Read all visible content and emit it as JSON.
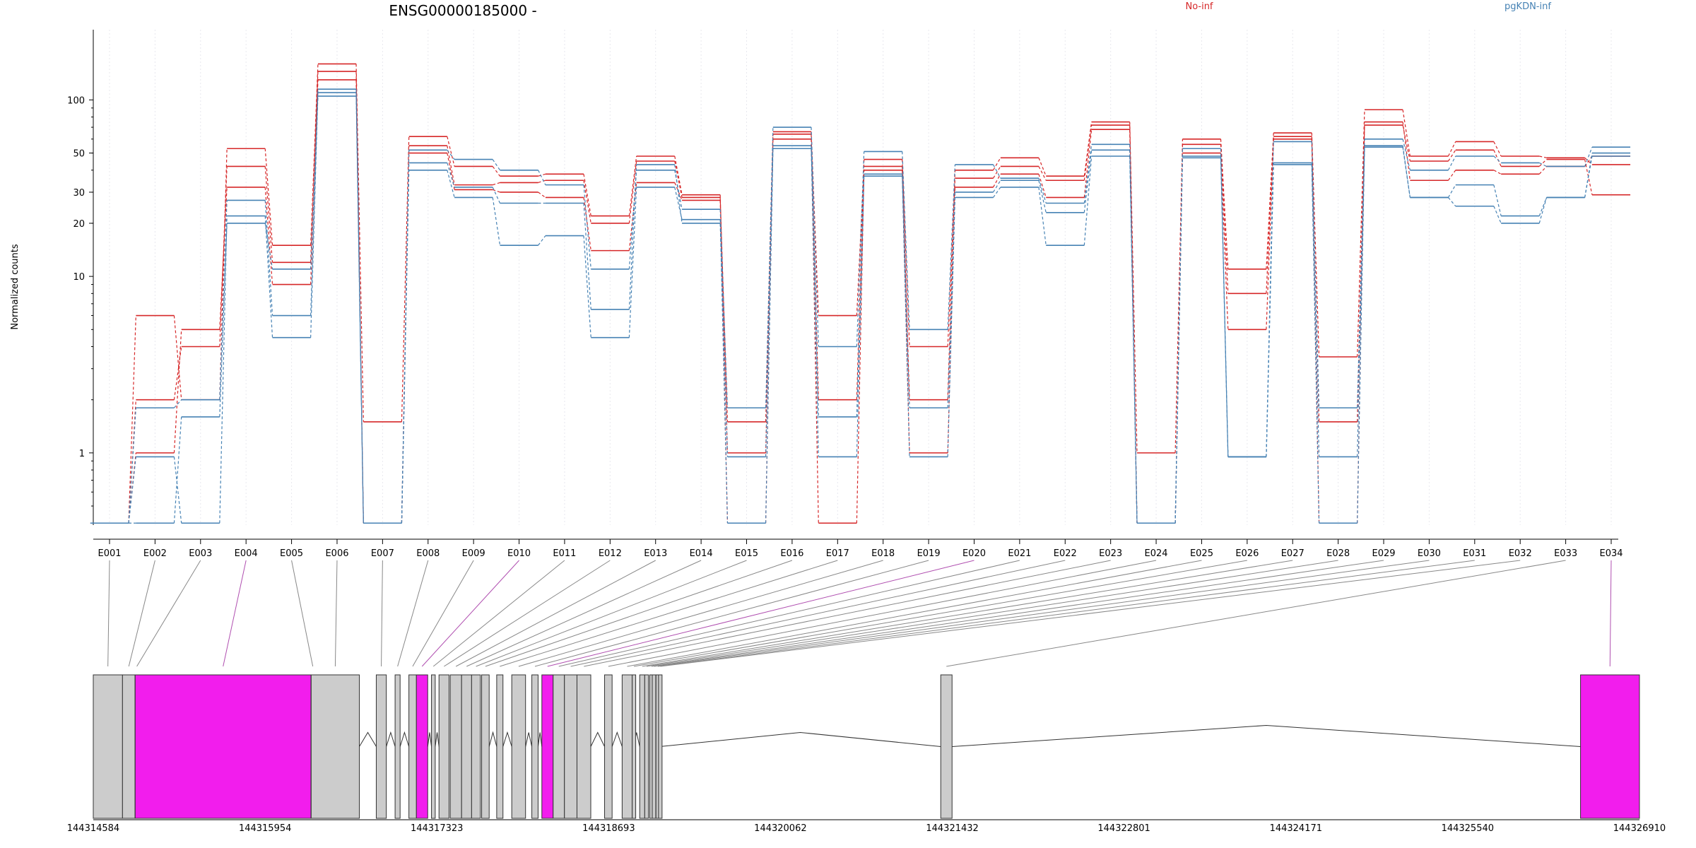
{
  "chart_data": {
    "type": "line",
    "title": "ENSG00000185000 -",
    "ylabel": "Normalized counts",
    "yscale": "log",
    "ylim": [
      0.39,
      250
    ],
    "y_ticks": [
      {
        "value": 1,
        "label": "1"
      },
      {
        "value": 10,
        "label": "10"
      },
      {
        "value": 20,
        "label": "20"
      },
      {
        "value": 30,
        "label": "30"
      },
      {
        "value": 50,
        "label": "50"
      },
      {
        "value": 100,
        "label": "100"
      }
    ],
    "categories": [
      "E001",
      "E002",
      "E003",
      "E004",
      "E005",
      "E006",
      "E007",
      "E008",
      "E009",
      "E010",
      "E011",
      "E012",
      "E013",
      "E014",
      "E015",
      "E016",
      "E017",
      "E018",
      "E019",
      "E020",
      "E021",
      "E022",
      "E023",
      "E024",
      "E025",
      "E026",
      "E027",
      "E028",
      "E029",
      "E030",
      "E031",
      "E032",
      "E033",
      "E034"
    ],
    "legend": [
      {
        "name": "No-inf",
        "color": "#d62728"
      },
      {
        "name": "pgKDN-inf",
        "color": "#4682b4"
      }
    ],
    "series": [
      {
        "group": "No-inf",
        "color": "#d62728",
        "values": [
          0.4,
          6.0,
          2.0,
          53,
          15,
          160,
          1.5,
          62,
          42,
          37,
          38,
          22,
          48,
          29,
          1.0,
          66,
          6.0,
          42,
          2.0,
          40,
          47,
          37,
          75,
          1.0,
          60,
          11,
          65,
          3.5,
          88,
          48,
          58,
          48,
          47,
          43
        ]
      },
      {
        "group": "No-inf",
        "color": "#d62728",
        "values": [
          0.4,
          2.0,
          4.0,
          42,
          12,
          145,
          0.4,
          55,
          33,
          34,
          35,
          20,
          45,
          28,
          1.5,
          64,
          2.0,
          46,
          4.0,
          36,
          42,
          35,
          72,
          0.4,
          56,
          8.0,
          62,
          1.5,
          72,
          45,
          52,
          42,
          46,
          29
        ]
      },
      {
        "group": "No-inf",
        "color": "#d62728",
        "values": [
          0.4,
          1.0,
          5.0,
          32,
          9.0,
          130,
          0.4,
          50,
          31,
          30,
          28,
          14,
          34,
          27,
          0.4,
          60,
          0.4,
          40,
          1.0,
          32,
          38,
          28,
          68,
          0.4,
          50,
          5.0,
          60,
          0.4,
          75,
          35,
          40,
          38,
          42,
          48
        ]
      },
      {
        "group": "pgKDN-inf",
        "color": "#4682b4",
        "values": [
          0.4,
          1.8,
          2.0,
          27,
          6.0,
          115,
          0.4,
          52,
          46,
          40,
          33,
          11,
          40,
          24,
          1.8,
          70,
          4.0,
          51,
          5.0,
          43,
          36,
          26,
          56,
          0.4,
          53,
          0.95,
          58,
          1.8,
          60,
          40,
          48,
          44,
          42,
          54
        ]
      },
      {
        "group": "pgKDN-inf",
        "color": "#4682b4",
        "values": [
          0.4,
          0.95,
          0.4,
          22,
          4.5,
          110,
          0.4,
          44,
          32,
          26,
          26,
          6.5,
          43,
          20,
          0.95,
          55,
          1.6,
          38,
          1.8,
          30,
          35,
          23,
          52,
          0.4,
          48,
          0.95,
          44,
          0.95,
          55,
          28,
          33,
          22,
          28,
          50
        ]
      },
      {
        "group": "pgKDN-inf",
        "color": "#4682b4",
        "values": [
          0.4,
          0.4,
          1.6,
          20,
          11,
          105,
          0.4,
          40,
          28,
          15,
          17,
          4.5,
          32,
          21,
          0.4,
          53,
          0.95,
          37,
          0.95,
          28,
          32,
          15,
          48,
          0.4,
          47,
          0.95,
          43,
          0.4,
          54,
          28,
          25,
          20,
          28,
          48
        ]
      }
    ],
    "genomic_axis": {
      "start": 144314584,
      "end": 144326910,
      "ticks": [
        144314584,
        144315954,
        144317323,
        144318693,
        144320062,
        144321432,
        144322801,
        144324171,
        144325540,
        144326910
      ],
      "tick_labels": [
        "144314584",
        "144315954",
        "144317323",
        "144318693",
        "144320062",
        "144321432",
        "144322801",
        "144324171",
        "144325540",
        "144326910"
      ]
    },
    "exons": [
      {
        "id": "E001",
        "start": 144314584,
        "end": 144314817,
        "highlight": false
      },
      {
        "id": "E002",
        "start": 144314817,
        "end": 144314917,
        "highlight": false
      },
      {
        "id": "E003",
        "start": 144314917,
        "end": 144314918,
        "highlight": false
      },
      {
        "id": "E004",
        "start": 144314918,
        "end": 144316320,
        "highlight": true
      },
      {
        "id": "E005",
        "start": 144316320,
        "end": 144316321,
        "highlight": false
      },
      {
        "id": "E006",
        "start": 144316321,
        "end": 144316705,
        "highlight": false
      },
      {
        "id": "E007",
        "start": 144316840,
        "end": 144316920,
        "highlight": false
      },
      {
        "id": "E008",
        "start": 144316990,
        "end": 144317030,
        "highlight": false
      },
      {
        "id": "E009",
        "start": 144317100,
        "end": 144317160,
        "highlight": false
      },
      {
        "id": "E010",
        "start": 144317160,
        "end": 144317250,
        "highlight": true
      },
      {
        "id": "E011",
        "start": 144317280,
        "end": 144317310,
        "highlight": false
      },
      {
        "id": "E012",
        "start": 144317340,
        "end": 144317420,
        "highlight": false
      },
      {
        "id": "E013",
        "start": 144317430,
        "end": 144317520,
        "highlight": false
      },
      {
        "id": "E014",
        "start": 144317520,
        "end": 144317600,
        "highlight": false
      },
      {
        "id": "E015",
        "start": 144317600,
        "end": 144317670,
        "highlight": false
      },
      {
        "id": "E016",
        "start": 144317680,
        "end": 144317740,
        "highlight": false
      },
      {
        "id": "E017",
        "start": 144317800,
        "end": 144317850,
        "highlight": false
      },
      {
        "id": "E018",
        "start": 144317920,
        "end": 144318030,
        "highlight": false
      },
      {
        "id": "E019",
        "start": 144318080,
        "end": 144318130,
        "highlight": false
      },
      {
        "id": "E020",
        "start": 144318160,
        "end": 144318250,
        "highlight": true
      },
      {
        "id": "E021",
        "start": 144318250,
        "end": 144318340,
        "highlight": false
      },
      {
        "id": "E022",
        "start": 144318340,
        "end": 144318440,
        "highlight": false
      },
      {
        "id": "E023",
        "start": 144318440,
        "end": 144318550,
        "highlight": false
      },
      {
        "id": "E024",
        "start": 144318660,
        "end": 144318720,
        "highlight": false
      },
      {
        "id": "E025",
        "start": 144318800,
        "end": 144318880,
        "highlight": false
      },
      {
        "id": "E026",
        "start": 144318880,
        "end": 144318890,
        "highlight": false
      },
      {
        "id": "E027",
        "start": 144318940,
        "end": 144318980,
        "highlight": false
      },
      {
        "id": "E028",
        "start": 144318980,
        "end": 144319010,
        "highlight": false
      },
      {
        "id": "E029",
        "start": 144319020,
        "end": 144319040,
        "highlight": false
      },
      {
        "id": "E030",
        "start": 144319040,
        "end": 144319060,
        "highlight": false
      },
      {
        "id": "E031",
        "start": 144319070,
        "end": 144319080,
        "highlight": false
      },
      {
        "id": "E032",
        "start": 144319090,
        "end": 144319100,
        "highlight": false
      },
      {
        "id": "E033",
        "start": 144321340,
        "end": 144321430,
        "highlight": false
      },
      {
        "id": "E034",
        "start": 144326440,
        "end": 144326910,
        "highlight": true
      }
    ],
    "grid": true,
    "legend_position": "top-right"
  }
}
